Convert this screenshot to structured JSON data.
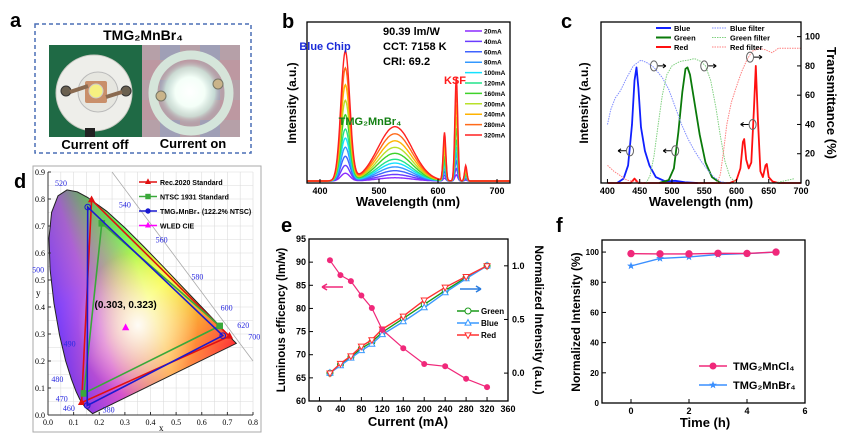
{
  "panel_labels": {
    "a": "a",
    "b": "b",
    "c": "c",
    "d": "d",
    "e": "e",
    "f": "f"
  },
  "panel_a": {
    "title": "TMG₂MnBr₄",
    "caption_off": "Current off",
    "caption_on": "Current on",
    "border_color": "#4a6fb5"
  },
  "chart_data": [
    {
      "id": "b",
      "type": "line",
      "xlabel": "Wavelength (nm)",
      "ylabel": "Intensity (a.u.)",
      "xlim": [
        378,
        722
      ],
      "xticks": [
        "400",
        "500",
        "600",
        "700"
      ],
      "xtick_values": [
        400,
        500,
        600,
        700
      ],
      "annotations": {
        "efficacy": "90.39 lm/W",
        "cct": "CCT: 7158 K",
        "cri": "CRI: 69.2",
        "blue_chip": "Blue Chip",
        "ksf": "KSF",
        "phosphor": "TMG₂MnBr₄"
      },
      "peaks_nm": {
        "blue_chip": 443,
        "phosphor": 527,
        "ksf": [
          611,
          631,
          647
        ]
      },
      "relative_peak_heights_at_320mA": {
        "blue_chip": 1.0,
        "phosphor": 0.42,
        "ksf": [
          0.37,
          0.8,
          0.12
        ]
      },
      "series": [
        {
          "name": "20mA",
          "scale": 0.06,
          "color": "#8b2cff"
        },
        {
          "name": "40mA",
          "scale": 0.12,
          "color": "#6a3cff"
        },
        {
          "name": "60mA",
          "scale": 0.19,
          "color": "#3f63ff"
        },
        {
          "name": "80mA",
          "scale": 0.26,
          "color": "#3398ff"
        },
        {
          "name": "100mA",
          "scale": 0.33,
          "color": "#14e1ff"
        },
        {
          "name": "120mA",
          "scale": 0.4,
          "color": "#22e38a"
        },
        {
          "name": "160mA",
          "scale": 0.51,
          "color": "#3fd22a"
        },
        {
          "name": "200mA",
          "scale": 0.62,
          "color": "#b8e12a"
        },
        {
          "name": "240mA",
          "scale": 0.74,
          "color": "#ffb300"
        },
        {
          "name": "280mA",
          "scale": 0.87,
          "color": "#ff6a1a"
        },
        {
          "name": "320mA",
          "scale": 1.0,
          "color": "#ff2020"
        }
      ]
    },
    {
      "id": "c",
      "type": "line",
      "xlabel": "Wavelength (nm)",
      "ylabel_left": "Intensity (a.u.)",
      "ylabel_right": "Transmittance (%)",
      "xlim": [
        390,
        700
      ],
      "ylim_right": [
        0,
        110
      ],
      "xticks": [
        "400",
        "450",
        "500",
        "550",
        "600",
        "650",
        "700"
      ],
      "xtick_values": [
        400,
        450,
        500,
        550,
        600,
        650,
        700
      ],
      "yticks_right": [
        "0",
        "20",
        "40",
        "60",
        "80",
        "100"
      ],
      "ytick_values_right": [
        0,
        20,
        40,
        60,
        80,
        100
      ],
      "series": [
        {
          "name": "Blue",
          "color": "#1020ff",
          "style": "solid",
          "points": [
            [
              415,
              0
            ],
            [
              425,
              3
            ],
            [
              432,
              12
            ],
            [
              438,
              40
            ],
            [
              442,
              70
            ],
            [
              445,
              79
            ],
            [
              448,
              65
            ],
            [
              452,
              38
            ],
            [
              458,
              22
            ],
            [
              465,
              12
            ],
            [
              475,
              4
            ],
            [
              490,
              1
            ],
            [
              505,
              1.5
            ],
            [
              520,
              0.5
            ],
            [
              540,
              0
            ]
          ]
        },
        {
          "name": "Green",
          "color": "#0a7a0a",
          "style": "solid",
          "points": [
            [
              480,
              0
            ],
            [
              495,
              2
            ],
            [
              503,
              10
            ],
            [
              510,
              35
            ],
            [
              516,
              62
            ],
            [
              521,
              78
            ],
            [
              524,
              79
            ],
            [
              528,
              74
            ],
            [
              535,
              55
            ],
            [
              543,
              33
            ],
            [
              552,
              14
            ],
            [
              562,
              4
            ],
            [
              575,
              0
            ]
          ]
        },
        {
          "name": "Red",
          "color": "#ff1010",
          "style": "solid",
          "points": [
            [
              400,
              0
            ],
            [
              436,
              0
            ],
            [
              442,
              3
            ],
            [
              448,
              0
            ],
            [
              590,
              0
            ],
            [
              600,
              2
            ],
            [
              606,
              10
            ],
            [
              610,
              28
            ],
            [
              612,
              30
            ],
            [
              615,
              16
            ],
            [
              619,
              10
            ],
            [
              623,
              14
            ],
            [
              627,
              50
            ],
            [
              630,
              80
            ],
            [
              633,
              45
            ],
            [
              637,
              8
            ],
            [
              641,
              4
            ],
            [
              645,
              12
            ],
            [
              647,
              13
            ],
            [
              650,
              4
            ],
            [
              656,
              1
            ],
            [
              665,
              0
            ],
            [
              700,
              0
            ]
          ]
        },
        {
          "name": "Blue filter",
          "color": "#7f8cff",
          "style": "dotted",
          "points": [
            [
              400,
              40
            ],
            [
              405,
              50
            ],
            [
              412,
              58
            ],
            [
              420,
              63
            ],
            [
              430,
              72
            ],
            [
              440,
              80
            ],
            [
              452,
              84
            ],
            [
              462,
              82
            ],
            [
              472,
              79
            ],
            [
              485,
              72
            ],
            [
              495,
              64
            ],
            [
              505,
              52
            ],
            [
              515,
              40
            ],
            [
              525,
              30
            ],
            [
              535,
              22
            ],
            [
              545,
              15
            ],
            [
              555,
              9
            ],
            [
              565,
              4
            ],
            [
              575,
              1
            ],
            [
              585,
              0
            ]
          ]
        },
        {
          "name": "Green filter",
          "color": "#7fd07f",
          "style": "dotted",
          "points": [
            [
              460,
              0
            ],
            [
              466,
              5
            ],
            [
              472,
              18
            ],
            [
              478,
              38
            ],
            [
              485,
              60
            ],
            [
              492,
              74
            ],
            [
              500,
              80
            ],
            [
              512,
              83
            ],
            [
              525,
              84
            ],
            [
              535,
              85
            ],
            [
              545,
              83
            ],
            [
              552,
              80
            ],
            [
              560,
              70
            ],
            [
              568,
              52
            ],
            [
              575,
              32
            ],
            [
              582,
              15
            ],
            [
              590,
              4
            ],
            [
              600,
              0
            ],
            [
              660,
              0
            ],
            [
              690,
              3
            ]
          ]
        },
        {
          "name": "Red filter",
          "color": "#ff8080",
          "style": "dotted",
          "points": [
            [
              400,
              12
            ],
            [
              410,
              8
            ],
            [
              420,
              5
            ],
            [
              430,
              2
            ],
            [
              440,
              1
            ],
            [
              460,
              0
            ],
            [
              570,
              0
            ],
            [
              575,
              6
            ],
            [
              580,
              22
            ],
            [
              585,
              40
            ],
            [
              592,
              55
            ],
            [
              600,
              66
            ],
            [
              608,
              76
            ],
            [
              616,
              84
            ],
            [
              624,
              90
            ],
            [
              635,
              92
            ],
            [
              645,
              91
            ],
            [
              655,
              89
            ],
            [
              665,
              92
            ],
            [
              680,
              92
            ],
            [
              700,
              92
            ]
          ]
        }
      ]
    },
    {
      "id": "d",
      "type": "scatter",
      "xlabel": "x",
      "ylabel": "y",
      "xlim": [
        0,
        0.8
      ],
      "ylim": [
        0,
        0.9
      ],
      "xticks": [
        "0.0",
        "0.1",
        "0.2",
        "0.3",
        "0.4",
        "0.5",
        "0.6",
        "0.7",
        "0.8"
      ],
      "yticks": [
        "0.0",
        "0.1",
        "0.2",
        "0.3",
        "0.4",
        "0.5",
        "0.6",
        "0.7",
        "0.8",
        "0.9"
      ],
      "grid": true,
      "legend_position": "top-right",
      "wavelength_labels": [
        {
          "label": "380",
          "x": 0.1741,
          "y": 0.005
        },
        {
          "label": "460",
          "x": 0.144,
          "y": 0.0297
        },
        {
          "label": "470",
          "x": 0.1241,
          "y": 0.0578
        },
        {
          "label": "480",
          "x": 0.0913,
          "y": 0.1327
        },
        {
          "label": "490",
          "x": 0.0454,
          "y": 0.295
        },
        {
          "label": "500",
          "x": 0.0082,
          "y": 0.5384
        },
        {
          "label": "520",
          "x": 0.0743,
          "y": 0.8338
        },
        {
          "label": "540",
          "x": 0.2296,
          "y": 0.7543
        },
        {
          "label": "560",
          "x": 0.3731,
          "y": 0.6245
        },
        {
          "label": "580",
          "x": 0.5125,
          "y": 0.4866
        },
        {
          "label": "600",
          "x": 0.627,
          "y": 0.3725
        },
        {
          "label": "620",
          "x": 0.6915,
          "y": 0.3083
        },
        {
          "label": "700",
          "x": 0.7347,
          "y": 0.2653
        }
      ],
      "series": [
        {
          "name": "Rec.2020  Standard",
          "color": "#e01010",
          "marker": "triangle",
          "points": [
            [
              0.708,
              0.292
            ],
            [
              0.17,
              0.797
            ],
            [
              0.131,
              0.046
            ]
          ]
        },
        {
          "name": "NTSC 1931  Standard",
          "color": "#3aa83a",
          "marker": "square",
          "points": [
            [
              0.67,
              0.33
            ],
            [
              0.21,
              0.71
            ],
            [
              0.14,
              0.08
            ]
          ]
        },
        {
          "name": "TMG₂MnBr₄ (122.2% NTSC)",
          "color": "#1a1ad0",
          "marker": "circle",
          "points": [
            [
              0.682,
              0.294
            ],
            [
              0.155,
              0.77
            ],
            [
              0.153,
              0.035
            ]
          ]
        },
        {
          "name": "WLED CIE",
          "color": "#ff00ff",
          "marker": "triangle",
          "points": [
            [
              0.303,
              0.323
            ]
          ]
        }
      ],
      "point_label": "(0.303, 0.323)"
    },
    {
      "id": "e",
      "type": "line",
      "xlabel": "Current (mA)",
      "ylabel_left": "Luminous efficency (lm/w)",
      "ylabel_right": "Normalized Intensity (a.u.)",
      "xlim": [
        -20,
        360
      ],
      "ylim_left": [
        60,
        95
      ],
      "ylim_right": [
        -0.26,
        1.25
      ],
      "xticks": [
        "0",
        "40",
        "80",
        "120",
        "160",
        "200",
        "240",
        "280",
        "320",
        "360"
      ],
      "xtick_values": [
        0,
        40,
        80,
        120,
        160,
        200,
        240,
        280,
        320,
        360
      ],
      "yticks_left": [
        "60",
        "65",
        "70",
        "75",
        "80",
        "85",
        "90",
        "95"
      ],
      "ytick_values_left": [
        60,
        65,
        70,
        75,
        80,
        85,
        90,
        95
      ],
      "yticks_right": [
        "0.0",
        "0.5",
        "1.0"
      ],
      "ytick_values_right": [
        0,
        0.5,
        1.0
      ],
      "x": [
        20,
        40,
        60,
        80,
        100,
        120,
        160,
        200,
        240,
        280,
        320
      ],
      "efficacy": {
        "color": "#f0287a",
        "values": [
          90.4,
          87.2,
          85.9,
          82.8,
          80.1,
          75.4,
          71.4,
          68.0,
          67.5,
          64.8,
          63.0
        ]
      },
      "series": [
        {
          "name": "Green",
          "color": "#1a9a1a",
          "marker": "circle",
          "values": [
            0,
            0.08,
            0.15,
            0.23,
            0.29,
            0.38,
            0.51,
            0.64,
            0.77,
            0.89,
            1.0
          ]
        },
        {
          "name": "Blue",
          "color": "#3a9aff",
          "marker": "triangle-up",
          "values": [
            0,
            0.07,
            0.14,
            0.21,
            0.27,
            0.36,
            0.48,
            0.61,
            0.75,
            0.88,
            1.0
          ]
        },
        {
          "name": "Red",
          "color": "#ff3030",
          "marker": "triangle-down",
          "values": [
            0,
            0.09,
            0.16,
            0.25,
            0.31,
            0.41,
            0.53,
            0.68,
            0.8,
            0.9,
            1.0
          ]
        }
      ],
      "legend_position": "right"
    },
    {
      "id": "f",
      "type": "line",
      "xlabel": "Time (h)",
      "ylabel": "Normalized Intensity (%)",
      "xlim": [
        -1,
        6
      ],
      "ylim": [
        0,
        108
      ],
      "xticks": [
        "0",
        "2",
        "4",
        "6"
      ],
      "xtick_values": [
        0,
        2,
        4,
        6
      ],
      "yticks": [
        "0",
        "20",
        "40",
        "60",
        "80",
        "100"
      ],
      "ytick_values": [
        0,
        20,
        40,
        60,
        80,
        100
      ],
      "x": [
        0,
        1,
        2,
        3,
        4,
        5
      ],
      "series": [
        {
          "name": "TMG₂MnCl₄",
          "color": "#f0287a",
          "marker": "circle",
          "values": [
            99,
            98.8,
            98.8,
            99.2,
            99.1,
            100
          ]
        },
        {
          "name": "TMG₂MnBr₄",
          "color": "#3a8fff",
          "marker": "star",
          "values": [
            90.8,
            95.8,
            96.8,
            98.4,
            99,
            100
          ]
        }
      ],
      "legend_position": "bottom-right"
    }
  ]
}
